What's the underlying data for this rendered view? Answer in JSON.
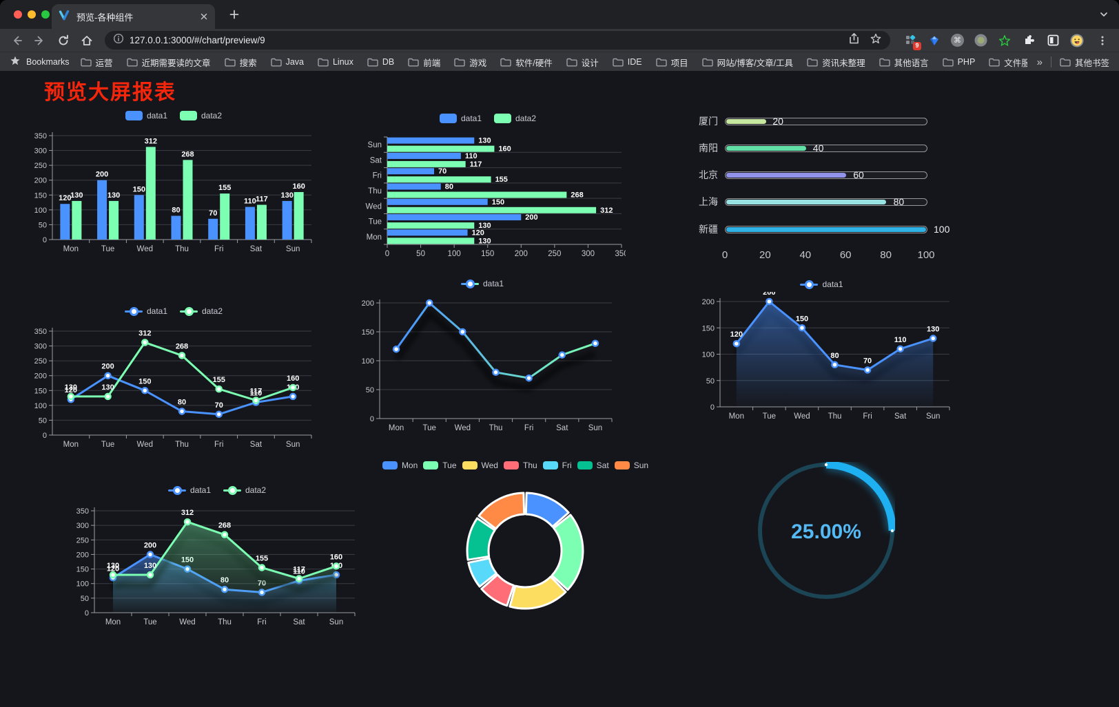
{
  "browser": {
    "tab_title": "预览-各种组件",
    "url": "127.0.0.1:3000/#/chart/preview/9",
    "bookmarks_label": "Bookmarks",
    "bookmarks": [
      "运营",
      "近期需要读的文章",
      "搜索",
      "Java",
      "Linux",
      "DB",
      "前端",
      "游戏",
      "软件/硬件",
      "设计",
      "IDE",
      "项目",
      "网站/博客/文章/工具",
      "资讯未整理",
      "其他语言",
      "PHP",
      "文件服务器"
    ],
    "bookmarks_overflow": "»",
    "other_bookmarks": "其他书签",
    "extension_badge": "9"
  },
  "page": {
    "title": "预览大屏报表",
    "title_color": "#f5260c"
  },
  "chart_data": [
    {
      "id": "bar-grouped",
      "type": "bar",
      "categories": [
        "Mon",
        "Tue",
        "Wed",
        "Thu",
        "Fri",
        "Sat",
        "Sun"
      ],
      "series": [
        {
          "name": "data1",
          "color": "#4992ff",
          "values": [
            120,
            200,
            150,
            80,
            70,
            110,
            130
          ]
        },
        {
          "name": "data2",
          "color": "#7cffb2",
          "values": [
            130,
            130,
            312,
            268,
            155,
            117,
            160
          ]
        }
      ],
      "ylim": [
        0,
        350
      ],
      "yticks": [
        0,
        50,
        100,
        150,
        200,
        250,
        300,
        350
      ],
      "labels": true,
      "grid": true,
      "legend_position": "top"
    },
    {
      "id": "bar-horizontal",
      "type": "bar-horizontal",
      "categories": [
        "Mon",
        "Tue",
        "Wed",
        "Thu",
        "Fri",
        "Sat",
        "Sun"
      ],
      "series": [
        {
          "name": "data1",
          "color": "#4992ff",
          "values": [
            120,
            200,
            150,
            80,
            70,
            110,
            130
          ]
        },
        {
          "name": "data2",
          "color": "#7cffb2",
          "values": [
            130,
            130,
            312,
            268,
            155,
            117,
            160
          ]
        }
      ],
      "xlim": [
        0,
        350
      ],
      "xticks": [
        0,
        50,
        100,
        150,
        200,
        250,
        300,
        350
      ],
      "labels": true,
      "grid": true,
      "legend_position": "top"
    },
    {
      "id": "progress",
      "type": "progress-bars",
      "max": 100,
      "xticks": [
        0,
        20,
        40,
        60,
        80,
        100
      ],
      "items": [
        {
          "label": "厦门",
          "value": 20,
          "color": "#c6e7a0"
        },
        {
          "label": "南阳",
          "value": 40,
          "color": "#62dfa6"
        },
        {
          "label": "北京",
          "value": 60,
          "color": "#9193ea"
        },
        {
          "label": "上海",
          "value": 80,
          "color": "#98e2e4"
        },
        {
          "label": "新疆",
          "value": 100,
          "color": "#2fb2e5"
        }
      ]
    },
    {
      "id": "line-dual",
      "type": "line",
      "categories": [
        "Mon",
        "Tue",
        "Wed",
        "Thu",
        "Fri",
        "Sat",
        "Sun"
      ],
      "series": [
        {
          "name": "data1",
          "color": "#4992ff",
          "values": [
            120,
            200,
            150,
            80,
            70,
            110,
            130
          ]
        },
        {
          "name": "data2",
          "color": "#7cffb2",
          "values": [
            130,
            130,
            312,
            268,
            155,
            117,
            160
          ]
        }
      ],
      "ylim": [
        0,
        350
      ],
      "yticks": [
        0,
        50,
        100,
        150,
        200,
        250,
        300,
        350
      ],
      "labels": true,
      "grid": true,
      "legend_position": "top"
    },
    {
      "id": "line-gradient",
      "type": "line",
      "categories": [
        "Mon",
        "Tue",
        "Wed",
        "Thu",
        "Fri",
        "Sat",
        "Sun"
      ],
      "series": [
        {
          "name": "data1",
          "color": "#4992ff",
          "color_gradient": [
            "#4992ff",
            "#7cffb2"
          ],
          "values": [
            120,
            200,
            150,
            80,
            70,
            110,
            130
          ]
        }
      ],
      "ylim": [
        0,
        200
      ],
      "yticks": [
        0,
        50,
        100,
        150,
        200
      ],
      "labels": false,
      "shadow": true,
      "grid": true,
      "legend_position": "top"
    },
    {
      "id": "area-single",
      "type": "area",
      "categories": [
        "Mon",
        "Tue",
        "Wed",
        "Thu",
        "Fri",
        "Sat",
        "Sun"
      ],
      "series": [
        {
          "name": "data1",
          "color": "#4992ff",
          "values": [
            120,
            200,
            150,
            80,
            70,
            110,
            130
          ]
        }
      ],
      "ylim": [
        0,
        200
      ],
      "yticks": [
        0,
        50,
        100,
        150,
        200
      ],
      "labels": true,
      "shadow": true,
      "grid": true,
      "legend_position": "top"
    },
    {
      "id": "area-dual",
      "type": "area",
      "categories": [
        "Mon",
        "Tue",
        "Wed",
        "Thu",
        "Fri",
        "Sat",
        "Sun"
      ],
      "series": [
        {
          "name": "data1",
          "color": "#4992ff",
          "values": [
            120,
            200,
            150,
            80,
            70,
            110,
            130
          ]
        },
        {
          "name": "data2",
          "color": "#7cffb2",
          "values": [
            130,
            130,
            312,
            268,
            155,
            117,
            160
          ]
        }
      ],
      "ylim": [
        0,
        350
      ],
      "yticks": [
        0,
        50,
        100,
        150,
        200,
        250,
        300,
        350
      ],
      "labels": true,
      "shadow": true,
      "grid": true,
      "legend_position": "top"
    },
    {
      "id": "pie-week",
      "type": "pie",
      "donut": true,
      "categories": [
        "Mon",
        "Tue",
        "Wed",
        "Thu",
        "Fri",
        "Sat",
        "Sun"
      ],
      "values": [
        120,
        200,
        150,
        80,
        70,
        110,
        130
      ],
      "colors": [
        "#4992ff",
        "#7cffb2",
        "#fddd60",
        "#ff6e76",
        "#58d9f9",
        "#05c091",
        "#ff8a45"
      ],
      "legend_position": "top"
    },
    {
      "id": "gauge",
      "type": "gauge",
      "value": 25,
      "label": "25.00%",
      "color": "#1fb0f2",
      "track_color": "#1b4454",
      "text_color": "#55b9f4"
    }
  ]
}
